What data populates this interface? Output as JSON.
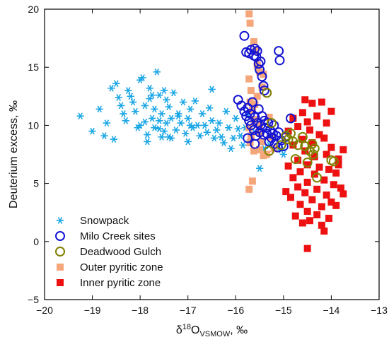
{
  "chart_data": {
    "type": "scatter",
    "xlabel": "δ¹⁸OVSMOW, ‰",
    "ylabel": "Deuterium excess, ‰",
    "xlim": [
      -20,
      -13
    ],
    "ylim": [
      -5,
      20
    ],
    "xticks": [
      -20,
      -19,
      -18,
      -17,
      -16,
      -15,
      -14,
      -13
    ],
    "yticks": [
      -5,
      0,
      5,
      10,
      15,
      20
    ],
    "grid": false,
    "legend_position": "bottom-left",
    "series": [
      {
        "name": "Snowpack",
        "marker": "asterisk",
        "color": "#1aa6e6",
        "points": [
          [
            -19.25,
            10.8
          ],
          [
            -19.0,
            9.5
          ],
          [
            -18.85,
            11.4
          ],
          [
            -18.75,
            9.1
          ],
          [
            -18.7,
            10.2
          ],
          [
            -18.6,
            13.2
          ],
          [
            -18.55,
            8.8
          ],
          [
            -18.5,
            13.6
          ],
          [
            -18.45,
            12.4
          ],
          [
            -18.4,
            11.7
          ],
          [
            -18.35,
            11.0
          ],
          [
            -18.3,
            10.4
          ],
          [
            -18.25,
            13.0
          ],
          [
            -18.2,
            12.5
          ],
          [
            -18.15,
            12.0
          ],
          [
            -18.1,
            11.2
          ],
          [
            -18.05,
            9.8
          ],
          [
            -18.0,
            13.9
          ],
          [
            -17.95,
            14.1
          ],
          [
            -17.9,
            10.3
          ],
          [
            -17.9,
            11.7
          ],
          [
            -17.85,
            9.2
          ],
          [
            -17.85,
            8.6
          ],
          [
            -17.8,
            13.2
          ],
          [
            -17.8,
            12.3
          ],
          [
            -17.75,
            10.6
          ],
          [
            -17.7,
            9.8
          ],
          [
            -17.7,
            11.4
          ],
          [
            -17.65,
            14.6
          ],
          [
            -17.6,
            10.4
          ],
          [
            -17.6,
            12.6
          ],
          [
            -17.55,
            9.0
          ],
          [
            -17.55,
            11.0
          ],
          [
            -17.5,
            9.5
          ],
          [
            -17.45,
            12.2
          ],
          [
            -17.45,
            10.2
          ],
          [
            -17.4,
            11.6
          ],
          [
            -17.35,
            8.9
          ],
          [
            -17.35,
            10.6
          ],
          [
            -17.3,
            12.8
          ],
          [
            -17.25,
            9.6
          ],
          [
            -17.2,
            11.0
          ],
          [
            -17.15,
            10.2
          ],
          [
            -17.1,
            12.0
          ],
          [
            -17.05,
            9.3
          ],
          [
            -17.0,
            10.6
          ],
          [
            -17.0,
            8.6
          ],
          [
            -16.95,
            11.4
          ],
          [
            -16.9,
            9.8
          ],
          [
            -16.85,
            12.1
          ],
          [
            -16.8,
            10.0
          ],
          [
            -16.75,
            9.1
          ],
          [
            -16.7,
            11.0
          ],
          [
            -16.65,
            10.0
          ],
          [
            -16.6,
            9.4
          ],
          [
            -16.55,
            11.5
          ],
          [
            -16.5,
            13.1
          ],
          [
            -16.5,
            10.4
          ],
          [
            -16.45,
            8.9
          ],
          [
            -16.4,
            9.6
          ],
          [
            -16.35,
            10.2
          ],
          [
            -16.3,
            9.0
          ],
          [
            -16.25,
            8.5
          ],
          [
            -16.2,
            11.2
          ],
          [
            -16.15,
            9.8
          ],
          [
            -16.1,
            8.0
          ],
          [
            -16.05,
            8.9
          ],
          [
            -16.0,
            10.6
          ],
          [
            -15.95,
            9.7
          ],
          [
            -15.9,
            9.1
          ],
          [
            -15.85,
            8.3
          ],
          [
            -15.8,
            9.8
          ],
          [
            -15.75,
            10.9
          ],
          [
            -15.7,
            8.6
          ],
          [
            -15.6,
            9.4
          ],
          [
            -15.5,
            6.3
          ],
          [
            -15.4,
            8.0
          ],
          [
            -15.3,
            8.3
          ],
          [
            -15.05,
            7.9
          ],
          [
            -15.0,
            7.5
          ],
          [
            -17.4,
            9.0
          ],
          [
            -17.6,
            9.7
          ],
          [
            -17.2,
            10.8
          ],
          [
            -16.95,
            10.0
          ],
          [
            -18.0,
            10.0
          ],
          [
            -17.75,
            12.6
          ],
          [
            -17.5,
            13.0
          ]
        ]
      },
      {
        "name": "Milo Creek sites",
        "marker": "circle",
        "color": "#1414d2",
        "points": [
          [
            -15.82,
            17.7
          ],
          [
            -15.78,
            16.3
          ],
          [
            -15.72,
            16.2
          ],
          [
            -15.68,
            16.5
          ],
          [
            -15.62,
            16.0
          ],
          [
            -15.6,
            16.6
          ],
          [
            -15.57,
            15.9
          ],
          [
            -15.55,
            16.4
          ],
          [
            -15.52,
            15.3
          ],
          [
            -15.5,
            14.8
          ],
          [
            -15.48,
            15.5
          ],
          [
            -15.45,
            14.2
          ],
          [
            -15.42,
            13.4
          ],
          [
            -15.4,
            13.0
          ],
          [
            -15.1,
            16.4
          ],
          [
            -15.08,
            15.6
          ],
          [
            -15.95,
            12.2
          ],
          [
            -15.88,
            11.7
          ],
          [
            -15.82,
            11.2
          ],
          [
            -15.78,
            10.8
          ],
          [
            -15.75,
            11.5
          ],
          [
            -15.72,
            10.4
          ],
          [
            -15.7,
            11.0
          ],
          [
            -15.68,
            10.0
          ],
          [
            -15.65,
            12.0
          ],
          [
            -15.62,
            9.6
          ],
          [
            -15.6,
            10.7
          ],
          [
            -15.58,
            9.1
          ],
          [
            -15.55,
            10.2
          ],
          [
            -15.52,
            11.4
          ],
          [
            -15.5,
            9.4
          ],
          [
            -15.48,
            10.0
          ],
          [
            -15.45,
            10.8
          ],
          [
            -15.42,
            9.2
          ],
          [
            -15.4,
            10.4
          ],
          [
            -15.38,
            9.8
          ],
          [
            -15.35,
            9.3
          ],
          [
            -15.32,
            10.2
          ],
          [
            -15.3,
            8.6
          ],
          [
            -15.28,
            9.6
          ],
          [
            -15.25,
            8.9
          ],
          [
            -15.22,
            9.3
          ],
          [
            -15.2,
            10.0
          ],
          [
            -15.18,
            8.4
          ],
          [
            -15.15,
            9.1
          ],
          [
            -15.12,
            8.1
          ],
          [
            -15.1,
            9.4
          ],
          [
            -15.05,
            8.7
          ],
          [
            -15.0,
            8.2
          ],
          [
            -14.95,
            9.0
          ],
          [
            -14.85,
            10.6
          ],
          [
            -15.75,
            8.9
          ],
          [
            -15.6,
            8.4
          ]
        ]
      },
      {
        "name": "Deadwood Gulch",
        "marker": "circle",
        "color": "#808000",
        "points": [
          [
            -15.35,
            12.8
          ],
          [
            -15.25,
            10.2
          ],
          [
            -15.05,
            8.3
          ],
          [
            -14.95,
            9.1
          ],
          [
            -14.9,
            8.8
          ],
          [
            -14.85,
            9.3
          ],
          [
            -14.8,
            8.6
          ],
          [
            -14.75,
            7.1
          ],
          [
            -14.7,
            8.3
          ],
          [
            -14.6,
            9.0
          ],
          [
            -14.55,
            8.2
          ],
          [
            -14.5,
            6.8
          ],
          [
            -14.45,
            7.8
          ],
          [
            -14.4,
            8.4
          ],
          [
            -14.38,
            7.5
          ],
          [
            -14.35,
            8.0
          ],
          [
            -14.3,
            5.5
          ],
          [
            -14.0,
            7.0
          ],
          [
            -13.95,
            6.9
          ],
          [
            -15.3,
            7.8
          ]
        ]
      },
      {
        "name": "Outer pyritic zone",
        "marker": "square",
        "color": "#f5a77b",
        "points": [
          [
            -15.72,
            19.6
          ],
          [
            -15.7,
            18.8
          ],
          [
            -15.62,
            17.2
          ],
          [
            -15.58,
            16.4
          ],
          [
            -15.55,
            15.2
          ],
          [
            -15.5,
            14.6
          ],
          [
            -15.45,
            13.3
          ],
          [
            -15.42,
            14.4
          ],
          [
            -15.72,
            14.0
          ],
          [
            -15.68,
            13.0
          ],
          [
            -15.7,
            12.0
          ],
          [
            -15.65,
            11.3
          ],
          [
            -15.62,
            10.5
          ],
          [
            -15.72,
            9.8
          ],
          [
            -15.68,
            9.1
          ],
          [
            -15.7,
            8.5
          ],
          [
            -15.62,
            7.8
          ],
          [
            -15.6,
            11.8
          ],
          [
            -15.55,
            12.5
          ],
          [
            -15.5,
            10.0
          ],
          [
            -15.48,
            9.3
          ],
          [
            -15.45,
            8.6
          ],
          [
            -15.42,
            7.4
          ],
          [
            -15.35,
            7.5
          ],
          [
            -15.3,
            10.7
          ],
          [
            -15.25,
            9.0
          ],
          [
            -15.2,
            8.0
          ],
          [
            -15.72,
            4.5
          ],
          [
            -15.65,
            5.2
          ],
          [
            -15.5,
            7.9
          ]
        ]
      },
      {
        "name": "Inner pyritic zone",
        "marker": "square",
        "color": "#ee1111",
        "points": [
          [
            -14.55,
            12.2
          ],
          [
            -14.4,
            11.9
          ],
          [
            -14.2,
            12.0
          ],
          [
            -14.0,
            11.2
          ],
          [
            -14.6,
            11.1
          ],
          [
            -14.3,
            10.8
          ],
          [
            -14.8,
            10.6
          ],
          [
            -14.5,
            10.3
          ],
          [
            -14.7,
            9.9
          ],
          [
            -14.1,
            10.2
          ],
          [
            -14.9,
            9.5
          ],
          [
            -14.45,
            9.6
          ],
          [
            -14.25,
            9.2
          ],
          [
            -14.6,
            8.8
          ],
          [
            -14.4,
            8.5
          ],
          [
            -14.15,
            8.9
          ],
          [
            -14.8,
            8.3
          ],
          [
            -14.0,
            8.1
          ],
          [
            -13.75,
            7.9
          ],
          [
            -14.55,
            7.8
          ],
          [
            -14.35,
            7.3
          ],
          [
            -14.1,
            7.5
          ],
          [
            -14.7,
            7.0
          ],
          [
            -13.85,
            7.1
          ],
          [
            -14.5,
            6.6
          ],
          [
            -14.25,
            6.4
          ],
          [
            -14.9,
            6.5
          ],
          [
            -14.05,
            6.2
          ],
          [
            -14.65,
            6.0
          ],
          [
            -14.35,
            5.8
          ],
          [
            -13.9,
            5.9
          ],
          [
            -14.8,
            5.5
          ],
          [
            -14.15,
            5.3
          ],
          [
            -14.5,
            5.1
          ],
          [
            -13.95,
            4.9
          ],
          [
            -14.7,
            4.7
          ],
          [
            -14.3,
            4.5
          ],
          [
            -13.8,
            4.6
          ],
          [
            -14.55,
            4.2
          ],
          [
            -14.1,
            4.0
          ],
          [
            -13.75,
            4.1
          ],
          [
            -14.85,
            3.8
          ],
          [
            -14.4,
            3.6
          ],
          [
            -14.0,
            3.4
          ],
          [
            -14.65,
            3.2
          ],
          [
            -14.2,
            3.0
          ],
          [
            -13.9,
            3.1
          ],
          [
            -14.5,
            2.6
          ],
          [
            -14.3,
            2.3
          ],
          [
            -14.75,
            2.2
          ],
          [
            -14.05,
            2.0
          ],
          [
            -14.6,
            1.6
          ],
          [
            -14.2,
            1.4
          ],
          [
            -14.15,
            0.9
          ],
          [
            -14.5,
            -0.6
          ],
          [
            -14.95,
            4.3
          ],
          [
            -13.85,
            6.6
          ],
          [
            -14.45,
            1.8
          ]
        ]
      }
    ]
  }
}
